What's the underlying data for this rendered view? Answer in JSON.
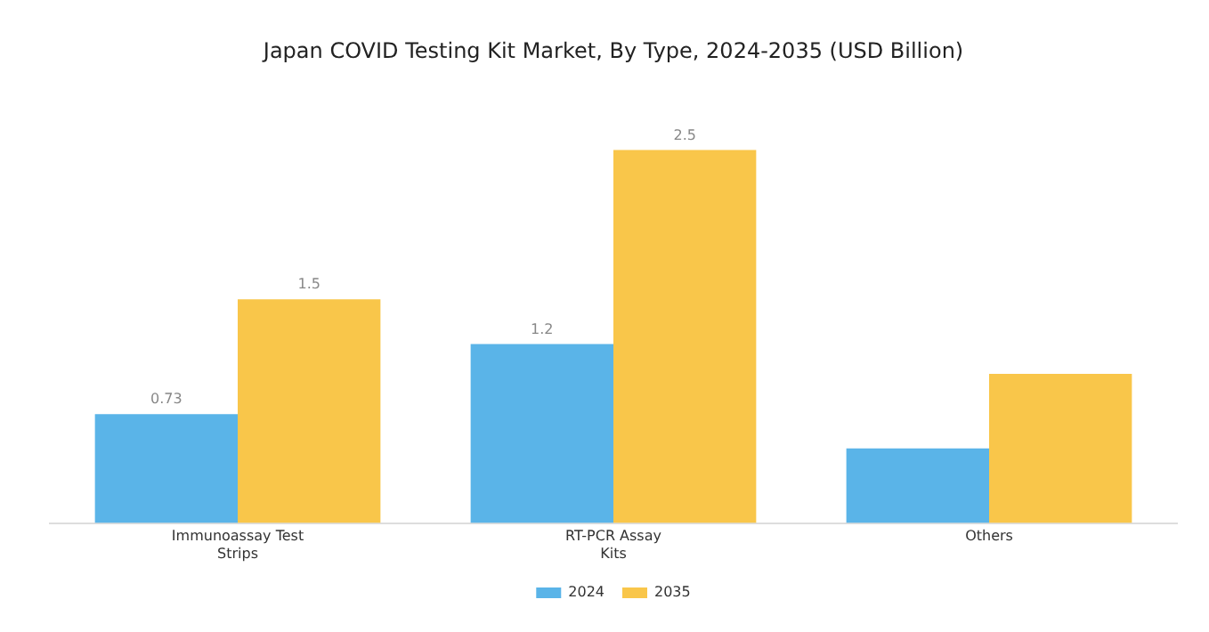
{
  "chart_data": {
    "type": "bar",
    "title": "Japan COVID Testing Kit Market, By Type, 2024-2035 (USD Billion)",
    "categories": [
      "Immunoassay Test Strips",
      "RT-PCR Assay Kits",
      "Others"
    ],
    "series": [
      {
        "name": "2024",
        "color": "#5ab4e8",
        "values": [
          0.73,
          1.2,
          0.5
        ],
        "value_labels": [
          "0.73",
          "1.2",
          null
        ]
      },
      {
        "name": "2035",
        "color": "#f9c64a",
        "values": [
          1.5,
          2.5,
          1.0
        ],
        "value_labels": [
          "1.5",
          "2.5",
          null
        ]
      }
    ],
    "legend": "bottom",
    "grid": false
  }
}
